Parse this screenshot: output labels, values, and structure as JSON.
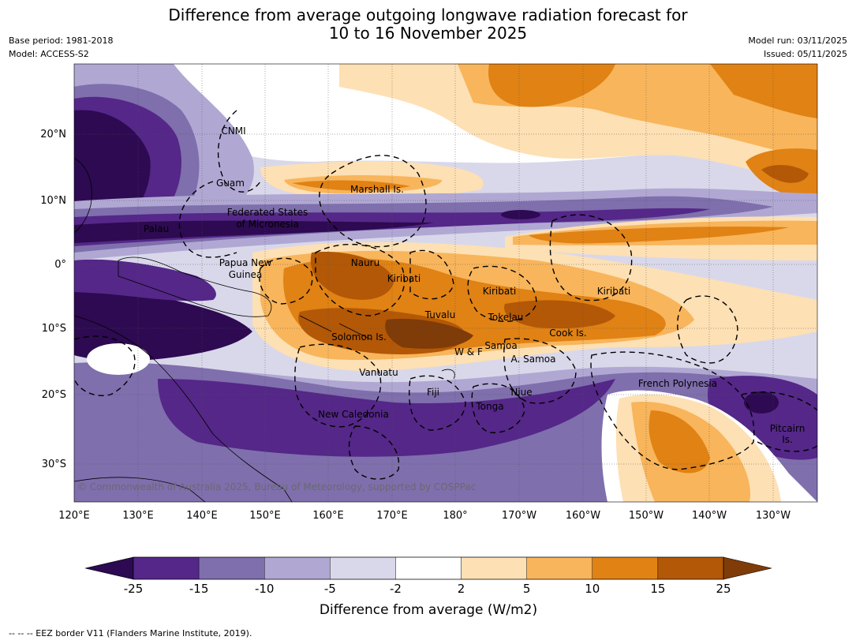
{
  "title": {
    "line1": "Difference from average outgoing longwave radiation forecast for",
    "line2": "10 to 16 November 2025"
  },
  "meta_left": {
    "base_period": "Base period: 1981-2018",
    "model": "Model: ACCESS-S2"
  },
  "meta_right": {
    "model_run": "Model run: 03/11/2025",
    "issued": "Issued: 05/11/2025"
  },
  "axes": {
    "lat_labels": [
      "20°N",
      "10°N",
      "0°",
      "10°S",
      "20°S",
      "30°S"
    ],
    "lon_labels": [
      "120°E",
      "130°E",
      "140°E",
      "150°E",
      "160°E",
      "170°E",
      "180°",
      "170°W",
      "160°W",
      "150°W",
      "140°W",
      "130°W"
    ]
  },
  "regions": {
    "cnmi": "CNMI",
    "guam": "Guam",
    "marshall": "Marshall Is.",
    "fsm1": "Federated States",
    "fsm2": "of Micronesia",
    "palau": "Palau",
    "png1": "Papua New",
    "png2": "Guinea",
    "nauru": "Nauru",
    "kiribati_w": "Kiribati",
    "kiribati_c": "Kiribati",
    "kiribati_e": "Kiribati",
    "tuvalu": "Tuvalu",
    "tokelau": "Tokelau",
    "cook": "Cook Is.",
    "solomon": "Solomon Is.",
    "wf": "W & F",
    "samoa": "Samoa",
    "asamoa": "A. Samoa",
    "vanuatu": "Vanuatu",
    "fiji": "Fiji",
    "niue": "Niue",
    "tonga": "Tonga",
    "frpoly": "French Polynesia",
    "pitcairn1": "Pitcairn",
    "pitcairn2": "Is.",
    "newcal": "New Caledonia"
  },
  "copyright": "© Commonwealth of Australia 2025, Bureau of Meteorology, supported by COSPPac",
  "colorbar": {
    "title": "Difference from average (W/m2)",
    "ticks": [
      "-25",
      "-15",
      "-10",
      "-5",
      "-2",
      "2",
      "5",
      "10",
      "15",
      "25"
    ],
    "colors": [
      "#2d0a51",
      "#542788",
      "#7f6fad",
      "#b0a8d3",
      "#d9d8ea",
      "#ffffff",
      "#fde0b4",
      "#f8b55b",
      "#e08214",
      "#b35806",
      "#7f3b08"
    ]
  },
  "footer": "-- -- -- EEZ border V11 (Flanders Marine Institute, 2019)."
}
